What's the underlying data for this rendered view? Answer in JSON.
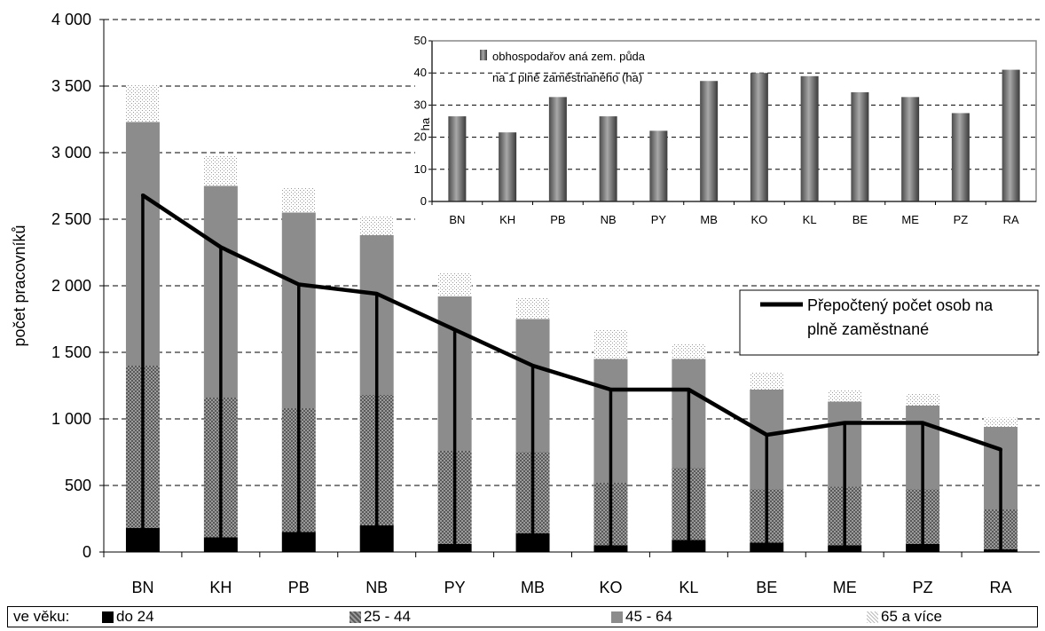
{
  "chart_data": [
    {
      "type": "bar",
      "stacked": true,
      "ylabel": "počet pracovníků",
      "ylim": [
        0,
        4000
      ],
      "yticks": [
        "0",
        "500",
        "1 000",
        "1 500",
        "2 000",
        "2 500",
        "3 000",
        "3 500",
        "4 000"
      ],
      "yticks_values": [
        0,
        500,
        1000,
        1500,
        2000,
        2500,
        3000,
        3500,
        4000
      ],
      "grid": "dashed horizontal",
      "categories": [
        "BN",
        "KH",
        "PB",
        "NB",
        "PY",
        "MB",
        "KO",
        "KL",
        "BE",
        "ME",
        "PZ",
        "RA"
      ],
      "series": [
        {
          "name": "do 24",
          "color": "#000000",
          "values": [
            180,
            110,
            150,
            200,
            60,
            140,
            50,
            90,
            70,
            50,
            60,
            20
          ]
        },
        {
          "name": "25 - 44",
          "color": "#7a7a7a",
          "values": [
            1220,
            1050,
            930,
            980,
            700,
            610,
            470,
            540,
            400,
            440,
            410,
            300
          ]
        },
        {
          "name": "45 - 64",
          "color": "#8c8c8c",
          "values": [
            1830,
            1590,
            1470,
            1200,
            1160,
            1000,
            930,
            820,
            750,
            640,
            630,
            620
          ]
        },
        {
          "name": "65 a více",
          "color": "#dcdcdc",
          "values": [
            280,
            230,
            190,
            140,
            180,
            160,
            220,
            110,
            130,
            90,
            90,
            70
          ]
        }
      ],
      "line_series": {
        "name": "Přepočtený počet osob na plně zaměstnané",
        "values": [
          2680,
          2290,
          2010,
          1940,
          1670,
          1400,
          1220,
          1220,
          880,
          970,
          970,
          770
        ]
      },
      "legend_title": "ve věku:",
      "legend_position": "bottom",
      "line_legend_lines": [
        "Přepočtený počet osob na",
        "plně zaměstnané"
      ],
      "line_legend_position": "right"
    },
    {
      "type": "bar",
      "ylabel": "ha",
      "ylim": [
        0,
        50
      ],
      "yticks": [
        "0",
        "10",
        "20",
        "30",
        "40",
        "50"
      ],
      "grid": "dashed horizontal",
      "categories": [
        "BN",
        "KH",
        "PB",
        "NB",
        "PY",
        "MB",
        "KO",
        "KL",
        "BE",
        "ME",
        "PZ",
        "RA"
      ],
      "series": [
        {
          "name": "obhospodařov aná zem. půda na 1 plně zaměstnaného (ha)",
          "color": "#808080",
          "values": [
            26.5,
            21.5,
            32.5,
            26.5,
            22,
            37.5,
            40,
            39,
            34,
            32.5,
            27.5,
            41
          ]
        }
      ],
      "legend_lines": [
        "obhospodařov aná zem. půda",
        "na 1 plně zaměstnaného (ha)"
      ],
      "legend_position": "top-left"
    }
  ]
}
